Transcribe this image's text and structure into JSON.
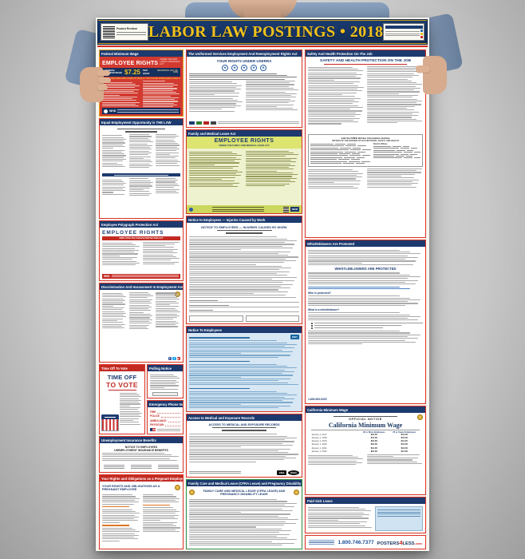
{
  "poster": {
    "title": "LABOR LAW POSTINGS • 2018",
    "revision_label": "Product Revision",
    "colors": {
      "navy": "#1c3a6e",
      "gold": "#f0c11c",
      "red": "#d3291f",
      "fmla_green": "#dde46f"
    }
  },
  "left": {
    "fmw": {
      "header": "Federal Minimum Wage",
      "title": "EMPLOYEE RIGHTS",
      "subtitle": "UNDER THE FAIR LABOR STANDARDS ACT",
      "wage_label": "FEDERAL MINIMUM WAGE",
      "wage": "$7.25",
      "per_hour": "PER HOUR",
      "effective": "BEGINNING JULY 24, 2009",
      "note": "THE LAW REQUIRES EMPLOYERS TO DISPLAY THIS POSTER WHERE EMPLOYEES CAN READILY SEE IT.",
      "agency": "WHD"
    },
    "eeo": {
      "header": "Equal Employment Opportunity is THE LAW"
    },
    "polygraph": {
      "header": "Employee Polygraph Protection Act",
      "title": "EMPLOYEE RIGHTS",
      "banner": "EMPLOYEE POLYGRAPH PROTECTION ACT",
      "agency": "WHD"
    },
    "discrimination": {
      "header": "Discrimination And Harassment In Employment Are Prohibited By Law"
    },
    "vote": {
      "header": "Time Off To Vote",
      "big1": "TIME OFF",
      "big2": "TO VOTE"
    },
    "polling": {
      "header": "Polling Notice"
    },
    "emergency": {
      "header": "Emergency Phone Numbers",
      "rows": [
        "FIRE",
        "POLICE",
        "AMBULANCE",
        "PHYSICIAN",
        "HOSPITAL"
      ]
    },
    "unemployment": {
      "header": "Unemployment Insurance Benefits",
      "line1": "NOTICE TO EMPLOYEES",
      "line2": "UNEMPLOYMENT INSURANCE BENEFITS"
    },
    "pregnant": {
      "header": "Your Rights and Obligations as a Pregnant Employee",
      "body_title": "YOUR RIGHTS AND OBLIGATIONS AS A PREGNANT EMPLOYEE"
    }
  },
  "middle": {
    "userra": {
      "header": "The Uniformed Services Employment And Reemployment Rights Act",
      "subtitle": "YOUR RIGHTS UNDER USERRA"
    },
    "fmla": {
      "header": "Family and Medical Leave Act",
      "title": "EMPLOYEE RIGHTS",
      "subtitle": "UNDER THE FAMILY AND MEDICAL LEAVE ACT",
      "agency": "WHD"
    },
    "injuries": {
      "header": "Notice to Employees — Injuries Caused by Work",
      "body_title": "NOTICE TO EMPLOYEES — INJURIES CAUSED BY WORK"
    },
    "edd": {
      "header": "Notice To Employees",
      "agency": "EDD"
    },
    "records": {
      "header": "Access to Medical and Exposure Records",
      "body_title": "ACCESS TO MEDICAL AND EXPOSURE RECORDS",
      "logo1": "CNA",
      "logo2": "OSHA"
    },
    "cfra": {
      "header": "Family Care and Medical Leave (CFRA Leave) and Pregnancy Disability Leave",
      "body_title": "FAMILY CARE AND MEDICAL LEAVE (CFRA LEAVE) AND PREGNANCY DISABILITY LEAVE"
    }
  },
  "right": {
    "safety": {
      "header": "Safety And Health Protection On The Job",
      "body_title": "SAFETY AND HEALTH PROTECTION ON THE JOB",
      "hotline": "Call the FREE Worker Information Hotline",
      "offices_title": "OFFICES OF THE DIVISION OF OCCUPATIONAL SAFETY AND HEALTH",
      "district_title": "District Offices"
    },
    "whistle": {
      "header": "Whistleblowers Are Protected",
      "body_title": "WHISTLEBLOWERS ARE PROTECTED",
      "q1": "Who is protected?",
      "q2": "What is a whistleblower?",
      "hotline": "1-800-952-5225"
    },
    "minwage": {
      "header": "California Minimum Wage",
      "official": "OFFICIAL NOTICE",
      "body_title": "California Minimum Wage",
      "col_a": "26 or More Employees",
      "col_b": "25 or Fewer Employees",
      "rows": [
        [
          "January 1, 2017",
          "$10.50",
          "$10.00"
        ],
        [
          "January 1, 2018",
          "$11.00",
          "$10.50"
        ],
        [
          "January 1, 2019",
          "$12.00",
          "$11.00"
        ],
        [
          "January 1, 2020",
          "$13.00",
          "$12.00"
        ],
        [
          "January 1, 2021",
          "$14.00",
          "$13.00"
        ],
        [
          "January 1, 2022",
          "$15.00",
          "$14.00"
        ]
      ]
    },
    "sick": {
      "header": "Paid Sick Leave"
    },
    "footer": {
      "phone": "1.800.746.7377",
      "brand_prefix": "POSTERS",
      "brand_accent": "4",
      "brand_suffix": "LESS",
      "brand_tld": ".com"
    }
  }
}
